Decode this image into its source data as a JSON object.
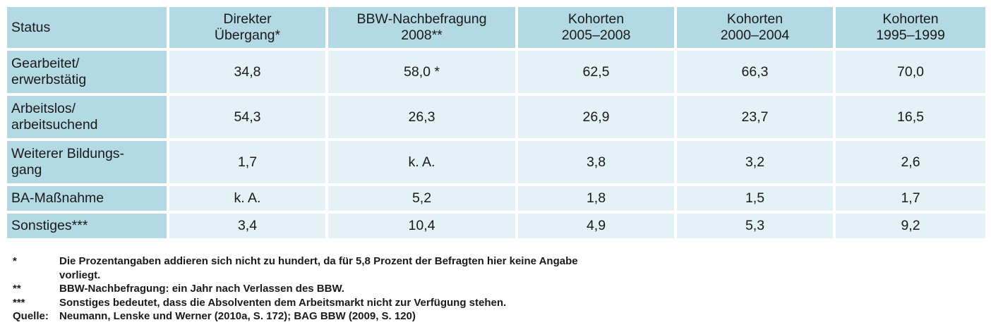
{
  "table": {
    "headers": [
      {
        "line1": "Status",
        "line2": ""
      },
      {
        "line1": "Direkter",
        "line2": "Übergang*"
      },
      {
        "line1": "BBW-Nachbefragung",
        "line2": "2008**"
      },
      {
        "line1": "Kohorten",
        "line2": "2005–2008"
      },
      {
        "line1": "Kohorten",
        "line2": "2000–2004"
      },
      {
        "line1": "Kohorten",
        "line2": "1995–1999"
      }
    ],
    "rows": [
      {
        "label1": "Gearbeitet/",
        "label2": "erwerbstätig",
        "values": [
          "34,8",
          "58,0 *",
          "62,5",
          "66,3",
          "70,0"
        ]
      },
      {
        "label1": "Arbeitslos/",
        "label2": "arbeitsuchend",
        "values": [
          "54,3",
          "26,3",
          "26,9",
          "23,7",
          "16,5"
        ]
      },
      {
        "label1": "Weiterer Bildungs-",
        "label2": "gang",
        "values": [
          "1,7",
          "k. A.",
          "3,8",
          "3,2",
          "2,6"
        ]
      },
      {
        "label1": "BA-Maßnahme",
        "label2": "",
        "values": [
          "k. A.",
          "5,2",
          "1,8",
          "1,5",
          "1,7"
        ]
      },
      {
        "label1": "Sonstiges***",
        "label2": "",
        "values": [
          "3,4",
          "10,4",
          "4,9",
          "5,3",
          "9,2"
        ]
      }
    ]
  },
  "footnotes": [
    {
      "mark": "*",
      "line1": "Die Prozentangaben addieren sich nicht zu hundert, da für 5,8 Prozent der Befragten hier keine Angabe",
      "line2": "vorliegt."
    },
    {
      "mark": "**",
      "line1": "BBW-Nachbefragung: ein Jahr nach Verlassen des BBW.",
      "line2": ""
    },
    {
      "mark": "***",
      "line1": "Sonstiges bedeutet, dass die Absolventen dem Arbeitsmarkt nicht zur Verfügung stehen.",
      "line2": ""
    },
    {
      "mark": "Quelle:",
      "line1": "Neumann, Lenske und Werner (2010a, S. 172); BAG BBW (2009, S. 120)",
      "line2": ""
    }
  ],
  "colors": {
    "header_fill": "#b3d9e5",
    "cell_fill": "#e4f1f6"
  }
}
